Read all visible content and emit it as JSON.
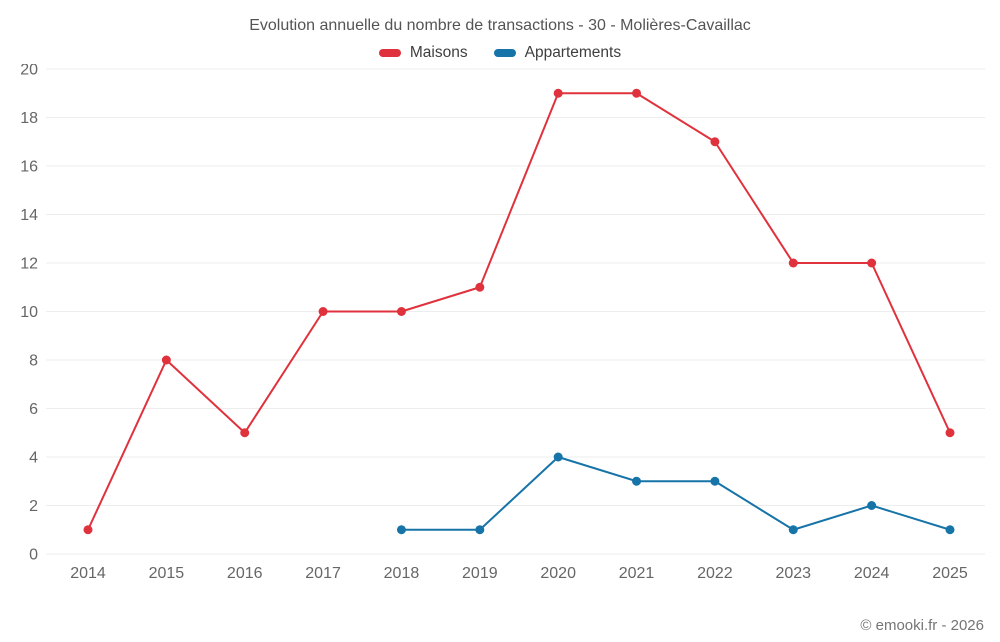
{
  "chart_data": {
    "type": "line",
    "title": "Evolution annuelle du nombre de transactions - 30 - Molières-Cavaillac",
    "categories": [
      "2014",
      "2015",
      "2016",
      "2017",
      "2018",
      "2019",
      "2020",
      "2021",
      "2022",
      "2023",
      "2024",
      "2025"
    ],
    "series": [
      {
        "name": "Maisons",
        "color": "#e0323c",
        "values": [
          1,
          8,
          5,
          10,
          10,
          11,
          19,
          19,
          17,
          12,
          12,
          5
        ]
      },
      {
        "name": "Appartements",
        "color": "#1674a8",
        "values": [
          null,
          null,
          null,
          null,
          1,
          1,
          4,
          3,
          3,
          1,
          2,
          1
        ]
      }
    ],
    "ylim": [
      0,
      20
    ],
    "ytick": 2,
    "grid": "horizontal",
    "legend_position": "top"
  },
  "colors": {
    "grid": "#ededed",
    "axis_text": "#666666",
    "title_text": "#545454",
    "footer_text": "#757575"
  },
  "footer": {
    "text": "© emooki.fr - 2026"
  }
}
